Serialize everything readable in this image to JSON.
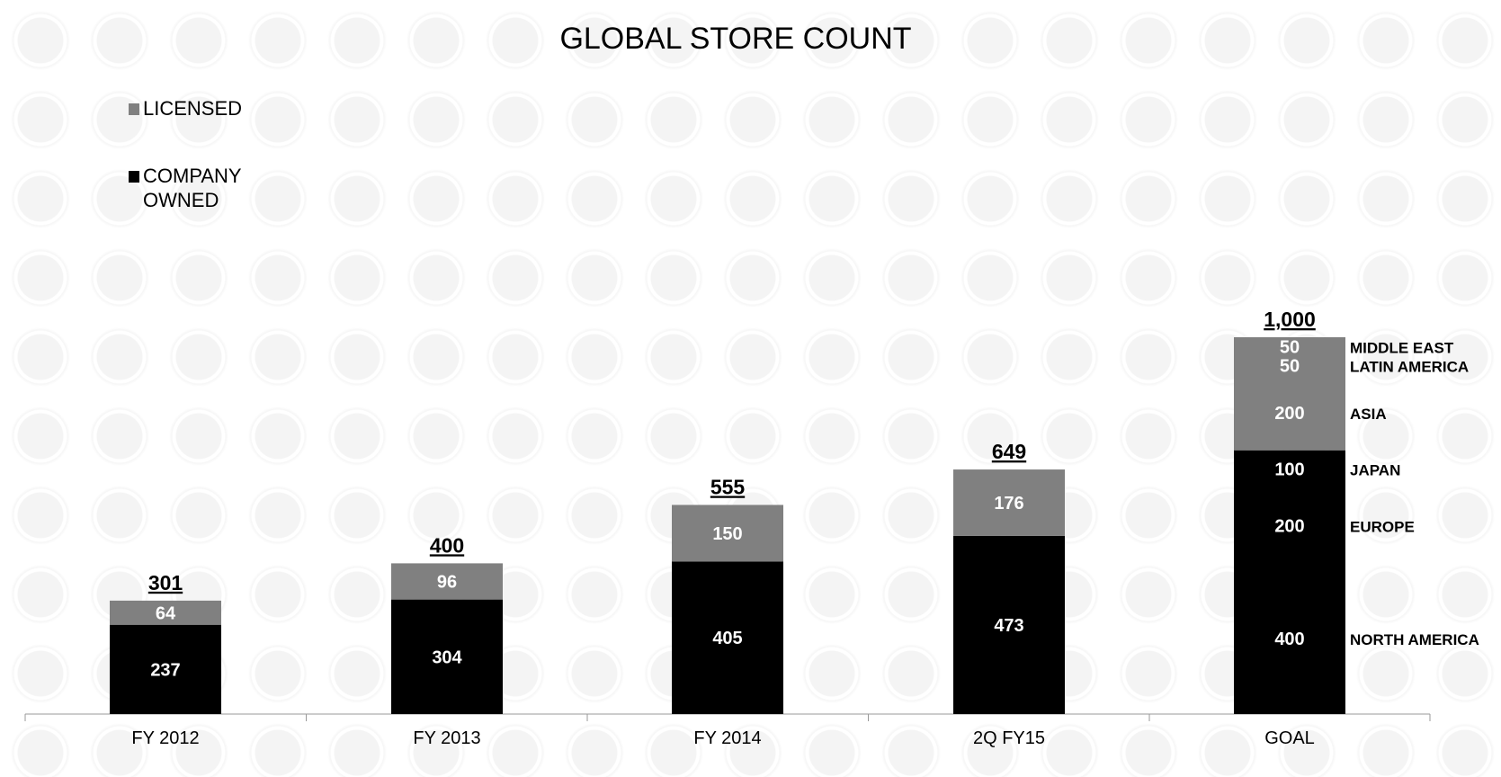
{
  "chart_data": {
    "type": "bar",
    "stacked": true,
    "title": "GLOBAL STORE COUNT",
    "categories": [
      "FY 2012",
      "FY 2013",
      "FY 2014",
      "2Q FY15",
      "GOAL"
    ],
    "series": [
      {
        "name": "COMPANY OWNED",
        "color": "#000000",
        "values": [
          237,
          304,
          405,
          473,
          700
        ]
      },
      {
        "name": "LICENSED",
        "color": "#808080",
        "values": [
          64,
          96,
          150,
          176,
          300
        ]
      }
    ],
    "totals": [
      "301",
      "400",
      "555",
      "649",
      "1,000"
    ],
    "legend": [
      {
        "label": "LICENSED",
        "color": "#808080"
      },
      {
        "label_lines": [
          "COMPANY",
          "OWNED"
        ],
        "color": "#000000"
      }
    ],
    "legend_position": "top-left",
    "ylim": [
      0,
      1000
    ],
    "grid": false,
    "goal_breakdown": [
      {
        "series": "COMPANY OWNED",
        "region": "NORTH AMERICA",
        "value": 400
      },
      {
        "series": "COMPANY OWNED",
        "region": "EUROPE",
        "value": 200
      },
      {
        "series": "COMPANY OWNED",
        "region": "JAPAN",
        "value": 100
      },
      {
        "series": "LICENSED",
        "region": "ASIA",
        "value": 200
      },
      {
        "series": "LICENSED",
        "region": "LATIN AMERICA",
        "value": 50
      },
      {
        "series": "LICENSED",
        "region": "MIDDLE EAST",
        "value": 50
      }
    ]
  }
}
